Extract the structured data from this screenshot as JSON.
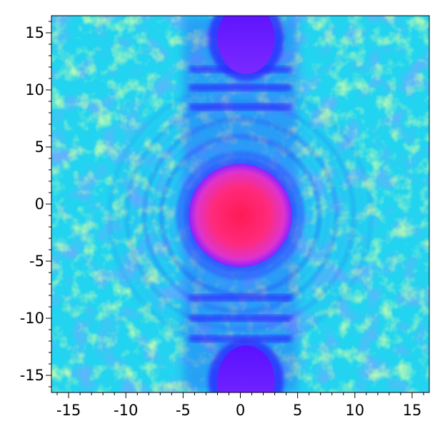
{
  "chart_data": {
    "type": "heatmap",
    "title": "",
    "xlabel": "",
    "ylabel": "",
    "xlim": [
      -16.5,
      16.5
    ],
    "ylim": [
      -16.5,
      16.5
    ],
    "x_ticks": [
      {
        "value": -15,
        "label": "-15"
      },
      {
        "value": -10,
        "label": "-10"
      },
      {
        "value": -5,
        "label": "-5"
      },
      {
        "value": 0,
        "label": "0"
      },
      {
        "value": 5,
        "label": "5"
      },
      {
        "value": 10,
        "label": "10"
      },
      {
        "value": 15,
        "label": "15"
      }
    ],
    "y_ticks": [
      {
        "value": 15,
        "label": "15"
      },
      {
        "value": 10,
        "label": "10"
      },
      {
        "value": 5,
        "label": "5"
      },
      {
        "value": 0,
        "label": "0"
      },
      {
        "value": -5,
        "label": "-5"
      },
      {
        "value": -10,
        "label": "-10"
      },
      {
        "value": -15,
        "label": "-15"
      }
    ],
    "grid": false,
    "features": [
      {
        "name": "central peak",
        "x": 0,
        "y": -1,
        "radius": 4.5,
        "color": "#ff1a66"
      },
      {
        "name": "upper lobe",
        "x": 0.5,
        "y": 14.5,
        "radius": 2.5,
        "color": "#6a1aff"
      },
      {
        "name": "lower lobe",
        "x": 0.5,
        "y": -15.5,
        "radius": 2.5,
        "color": "#6a1aff"
      }
    ],
    "colors": {
      "background": "#22d4f0",
      "noise_high": "#6cf07a",
      "low": "#3d5bff",
      "mid": "#2a1aff",
      "peak_edge": "#cc33ff",
      "peak": "#ff1a66"
    }
  }
}
